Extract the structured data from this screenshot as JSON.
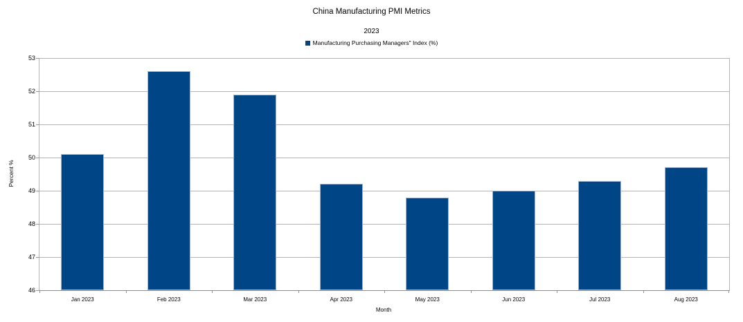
{
  "chart_data": {
    "type": "bar",
    "title": "China Manufacturing PMI Metrics",
    "subtitle": "2023",
    "legend_entries": [
      "Manufacturing Purchasing Managers\" Index (%)"
    ],
    "legend_position": "top",
    "categories": [
      "Jan 2023",
      "Feb 2023",
      "Mar 2023",
      "Apr 2023",
      "May 2023",
      "Jun 2023",
      "Jul 2023",
      "Aug 2023"
    ],
    "series": [
      {
        "name": "Manufacturing Purchasing Managers\" Index (%)",
        "values": [
          50.1,
          52.6,
          51.9,
          49.2,
          48.8,
          49.0,
          49.3,
          49.7
        ]
      }
    ],
    "xlabel": "Month",
    "ylabel": "Percent %",
    "ylim": [
      46,
      53
    ],
    "ytick_step": 1,
    "yticks": [
      46,
      47,
      48,
      49,
      50,
      51,
      52,
      53
    ],
    "grid": "horizontal-only",
    "colors": {
      "bar_fill": "#004586",
      "bar_border": "#9fb6d4",
      "gridline": "#b3b3b3",
      "axis_line": "#8c8c8c",
      "text": "#000000",
      "background": "#ffffff"
    }
  }
}
